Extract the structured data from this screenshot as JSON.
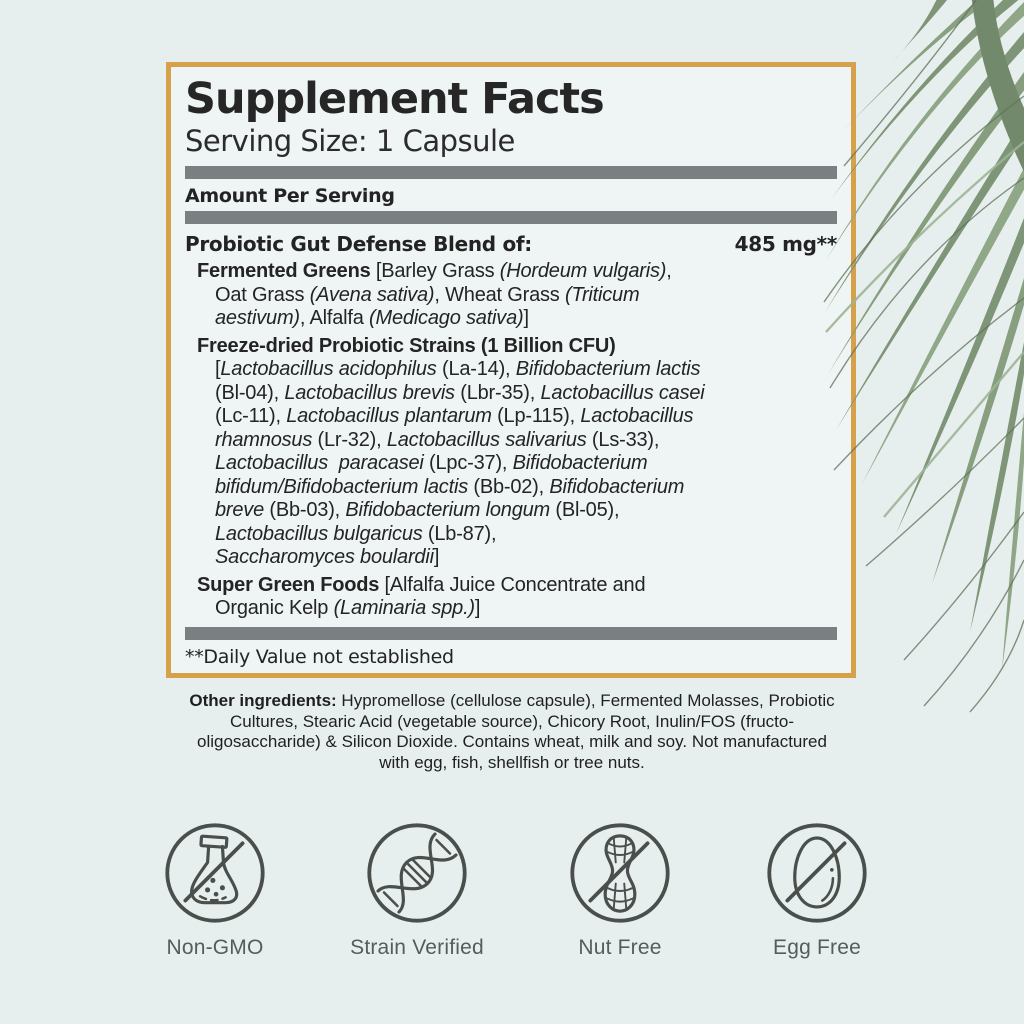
{
  "colors": {
    "page_background": "#e7efee",
    "panel_background": "#eef5f4",
    "gold_border": "#d5a14b",
    "divider_gray": "#7a8082",
    "text": "#232323",
    "icon_gray": "#4a4f4c",
    "leaf_green": "#7e9577"
  },
  "panel": {
    "title": "Supplement Facts",
    "serving_size": "Serving Size: 1 Capsule",
    "amount_per_serving": "Amount Per Serving",
    "blend_name": "Probiotic Gut Defense Blend of:",
    "blend_amount": "485 mg**",
    "sections": {
      "fermented_greens": {
        "lines": [
          {
            "ind": 0,
            "seg": [
              [
                "b",
                "Fermented Greens"
              ],
              [
                "r",
                " [Barley Grass "
              ],
              [
                "i",
                "(Hordeum vulgaris)"
              ],
              [
                "r",
                ","
              ]
            ]
          },
          {
            "ind": 1,
            "seg": [
              [
                "r",
                "Oat Grass "
              ],
              [
                "i",
                "(Avena sativa)"
              ],
              [
                "r",
                ", Wheat Grass "
              ],
              [
                "i",
                "(Triticum"
              ]
            ]
          },
          {
            "ind": 1,
            "seg": [
              [
                "i",
                "aestivum)"
              ],
              [
                "r",
                ", Alfalfa "
              ],
              [
                "i",
                "(Medicago sativa)"
              ],
              [
                "r",
                "]"
              ]
            ]
          }
        ]
      },
      "probiotic_strains": {
        "lines": [
          {
            "ind": 0,
            "seg": [
              [
                "b",
                "Freeze-dried Probiotic Strains (1 Billion CFU)"
              ]
            ]
          },
          {
            "ind": 1,
            "seg": [
              [
                "r",
                "["
              ],
              [
                "i",
                "Lactobacillus acidophilus"
              ],
              [
                "r",
                " (La-14), "
              ],
              [
                "i",
                "Bifidobacterium lactis"
              ]
            ]
          },
          {
            "ind": 1,
            "seg": [
              [
                "r",
                "(Bl-04), "
              ],
              [
                "i",
                "Lactobacillus brevis"
              ],
              [
                "r",
                " (Lbr-35), "
              ],
              [
                "i",
                "Lactobacillus casei"
              ]
            ]
          },
          {
            "ind": 1,
            "seg": [
              [
                "r",
                "(Lc-11), "
              ],
              [
                "i",
                "Lactobacillus plantarum"
              ],
              [
                "r",
                " (Lp-115), "
              ],
              [
                "i",
                "Lactobacillus"
              ]
            ]
          },
          {
            "ind": 1,
            "seg": [
              [
                "i",
                "rhamnosus"
              ],
              [
                "r",
                " (Lr-32), "
              ],
              [
                "i",
                "Lactobacillus salivarius"
              ],
              [
                "r",
                " (Ls-33),"
              ]
            ]
          },
          {
            "ind": 1,
            "seg": [
              [
                "i",
                "Lactobacillus  paracasei"
              ],
              [
                "r",
                " (Lpc-37), "
              ],
              [
                "i",
                "Bifidobacterium"
              ]
            ]
          },
          {
            "ind": 1,
            "seg": [
              [
                "i",
                "bifidum/Bifidobacterium lactis"
              ],
              [
                "r",
                " (Bb-02), "
              ],
              [
                "i",
                "Bifidobacterium"
              ]
            ]
          },
          {
            "ind": 1,
            "seg": [
              [
                "i",
                "breve"
              ],
              [
                "r",
                " (Bb-03), "
              ],
              [
                "i",
                "Bifidobacterium longum"
              ],
              [
                "r",
                " (Bl-05),"
              ]
            ]
          },
          {
            "ind": 1,
            "seg": [
              [
                "i",
                "Lactobacillus bulgaricus"
              ],
              [
                "r",
                " (Lb-87),"
              ]
            ]
          },
          {
            "ind": 1,
            "seg": [
              [
                "i",
                "Saccharomyces boulardii"
              ],
              [
                "r",
                "]"
              ]
            ]
          }
        ]
      },
      "super_green_foods": {
        "lines": [
          {
            "ind": 0,
            "seg": [
              [
                "b",
                "Super Green Foods"
              ],
              [
                "r",
                " [Alfalfa Juice Concentrate and"
              ]
            ]
          },
          {
            "ind": 1,
            "seg": [
              [
                "r",
                "Organic Kelp "
              ],
              [
                "i",
                "(Laminaria spp.)"
              ],
              [
                "r",
                "]"
              ]
            ]
          }
        ]
      }
    },
    "footnote": "**Daily Value not established"
  },
  "other_ingredients": {
    "lines": [
      {
        "ind": 0,
        "seg": [
          [
            "b",
            "Other ingredients:"
          ],
          [
            "r",
            " Hypromellose (cellulose capsule), Fermented Molasses, Probiotic"
          ]
        ]
      },
      {
        "ind": 0,
        "seg": [
          [
            "r",
            "Cultures, Stearic Acid (vegetable source), Chicory Root, Inulin/FOS (fructo-"
          ]
        ]
      },
      {
        "ind": 0,
        "seg": [
          [
            "r",
            "oligosaccharide) & Silicon Dioxide. Contains wheat, milk and soy. Not manufactured"
          ]
        ]
      },
      {
        "ind": 0,
        "seg": [
          [
            "r",
            "with egg, fish, shellfish or tree nuts."
          ]
        ]
      }
    ]
  },
  "badges": [
    {
      "icon": "no-gmo-flask-icon",
      "label": "Non-GMO"
    },
    {
      "icon": "dna-helix-icon",
      "label": "Strain Verified"
    },
    {
      "icon": "no-peanut-icon",
      "label": "Nut Free"
    },
    {
      "icon": "no-egg-icon",
      "label": "Egg Free"
    }
  ]
}
